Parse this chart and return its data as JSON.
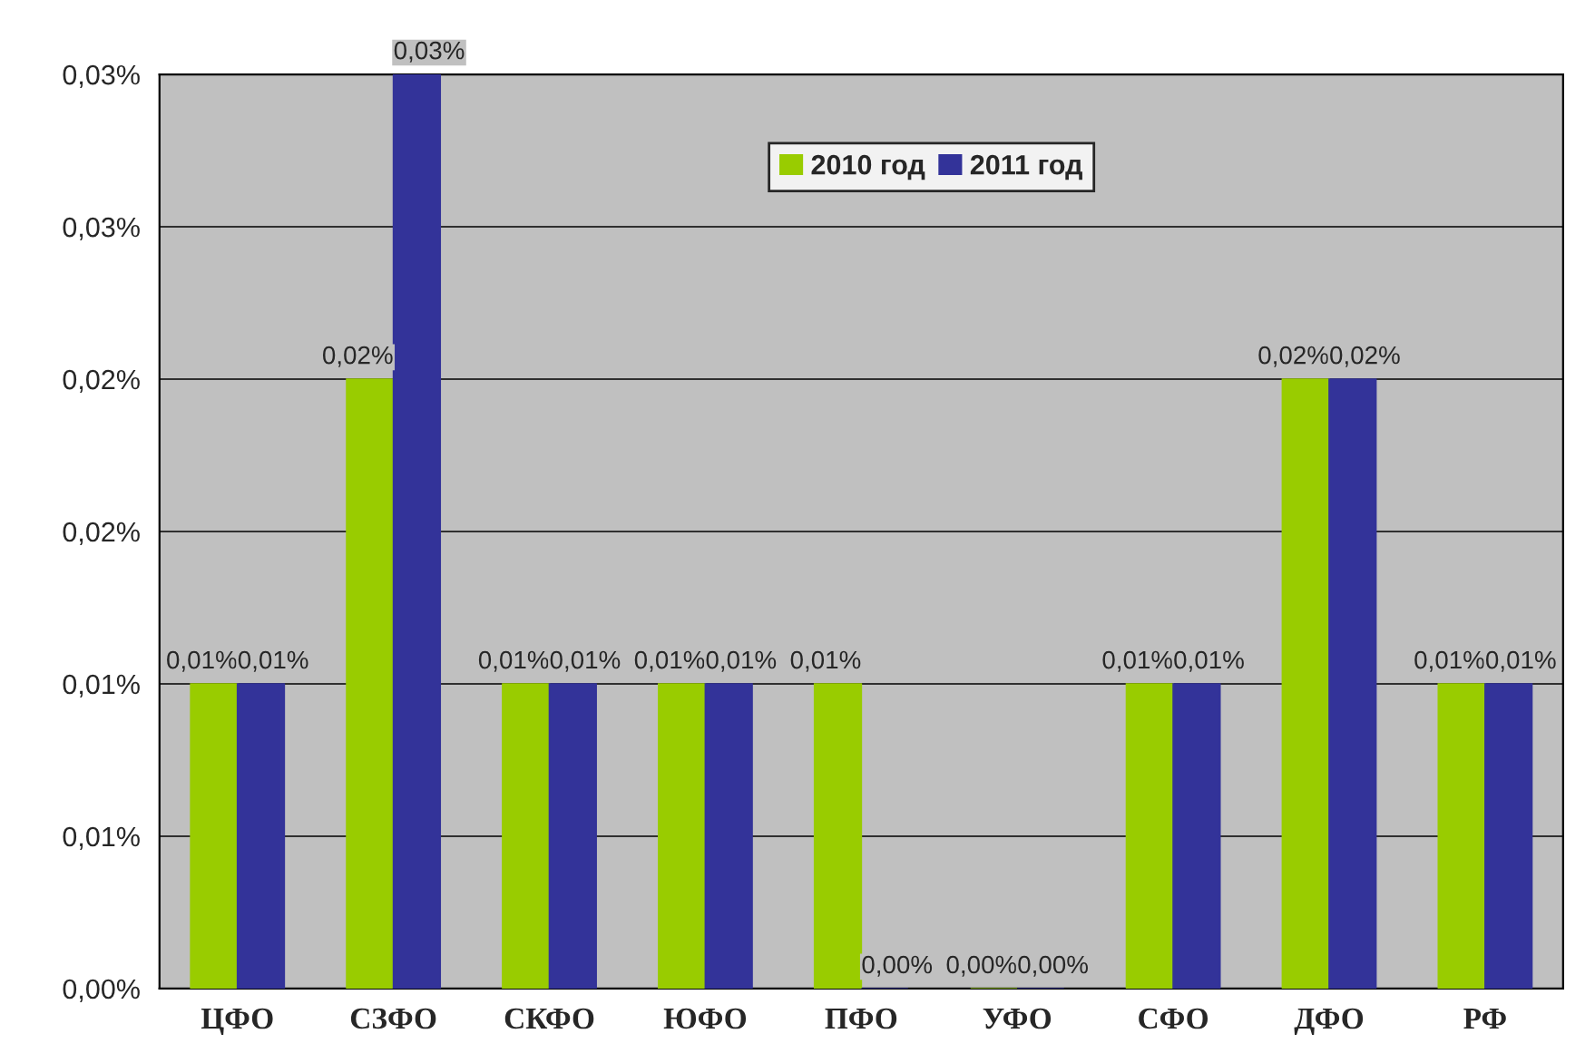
{
  "chart_data": {
    "type": "bar",
    "categories": [
      "ЦФО",
      "СЗФО",
      "СКФО",
      "ЮФО",
      "ПФО",
      "УФО",
      "СФО",
      "ДФО",
      "РФ"
    ],
    "series": [
      {
        "name": "2010 год",
        "color": "#99cc00",
        "values": [
          0.01,
          0.02,
          0.01,
          0.01,
          0.01,
          0,
          0.01,
          0.02,
          0.01
        ],
        "value_labels": [
          "0,01%",
          "0,02%",
          "0,01%",
          "0,01%",
          "0,01%",
          "0,00%",
          "0,01%",
          "0,02%",
          "0,01%"
        ]
      },
      {
        "name": "2011 год",
        "color": "#333399",
        "values": [
          0.01,
          0.03,
          0.01,
          0.01,
          0,
          0,
          0.01,
          0.02,
          0.01
        ],
        "value_labels": [
          "0,01%",
          "0,03%",
          "0,01%",
          "0,01%",
          "0,00%",
          "0,00%",
          "0,01%",
          "0,02%",
          "0,01%"
        ]
      }
    ],
    "ylim": [
      0,
      0.03
    ],
    "yticks": [
      {
        "value": 0,
        "label": "0,00%"
      },
      {
        "value": 0.005,
        "label": "0,01%"
      },
      {
        "value": 0.01,
        "label": "0,01%"
      },
      {
        "value": 0.015,
        "label": "0,02%"
      },
      {
        "value": 0.02,
        "label": "0,02%"
      },
      {
        "value": 0.025,
        "label": "0,03%"
      },
      {
        "value": 0.03,
        "label": "0,03%"
      }
    ],
    "grid": "y",
    "legend": "top"
  }
}
